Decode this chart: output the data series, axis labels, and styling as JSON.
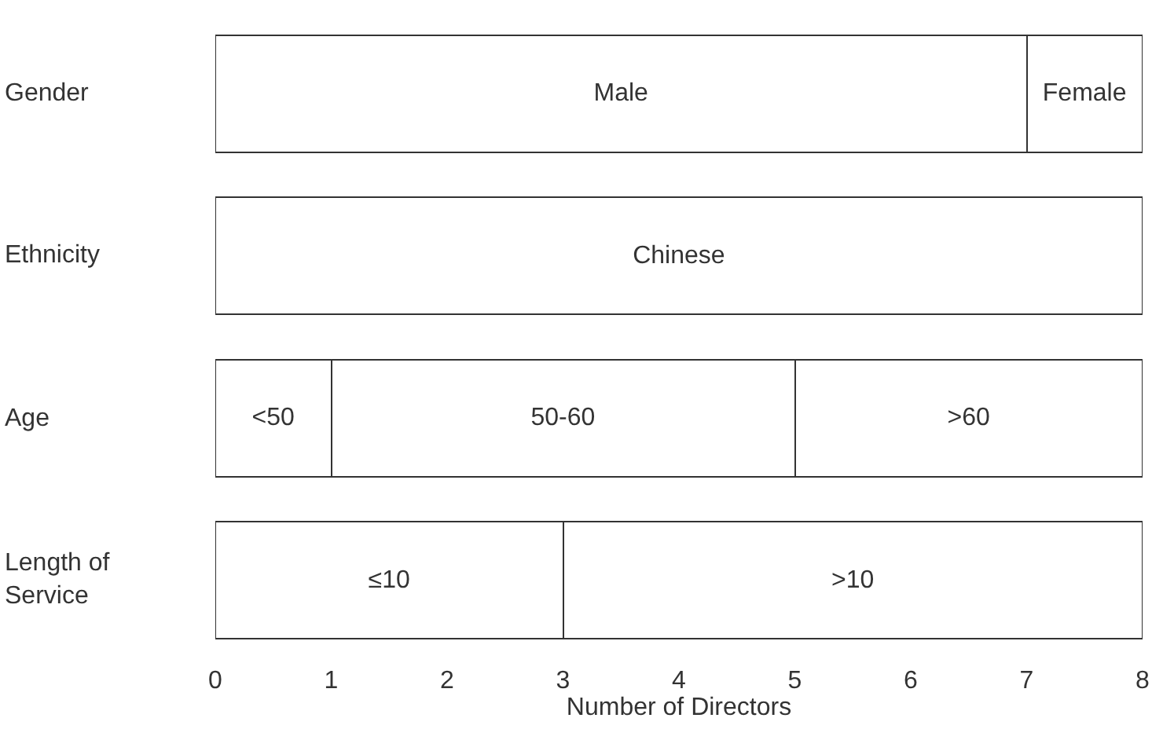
{
  "chart_data": {
    "type": "bar",
    "orientation": "horizontal",
    "stacked": true,
    "xlabel": "Number of Directors",
    "categories": [
      "Gender",
      "Ethnicity",
      "Age",
      "Length of Service"
    ],
    "series": [
      {
        "color": "#ffffff",
        "values": [
          7,
          8,
          1,
          3
        ],
        "value_labels": [
          "Male",
          "Chinese",
          "<50",
          "≤10"
        ]
      },
      {
        "color": "#ffffff",
        "values": [
          1,
          null,
          4,
          5
        ],
        "value_labels": [
          "Female",
          null,
          "50-60",
          ">10"
        ]
      },
      {
        "color": "#ffffff",
        "values": [
          null,
          null,
          3,
          null
        ],
        "value_labels": [
          null,
          null,
          ">60",
          null
        ]
      }
    ],
    "xlim": [
      0,
      8
    ],
    "xticks": [
      0,
      1,
      2,
      3,
      4,
      5,
      6,
      7,
      8
    ]
  }
}
